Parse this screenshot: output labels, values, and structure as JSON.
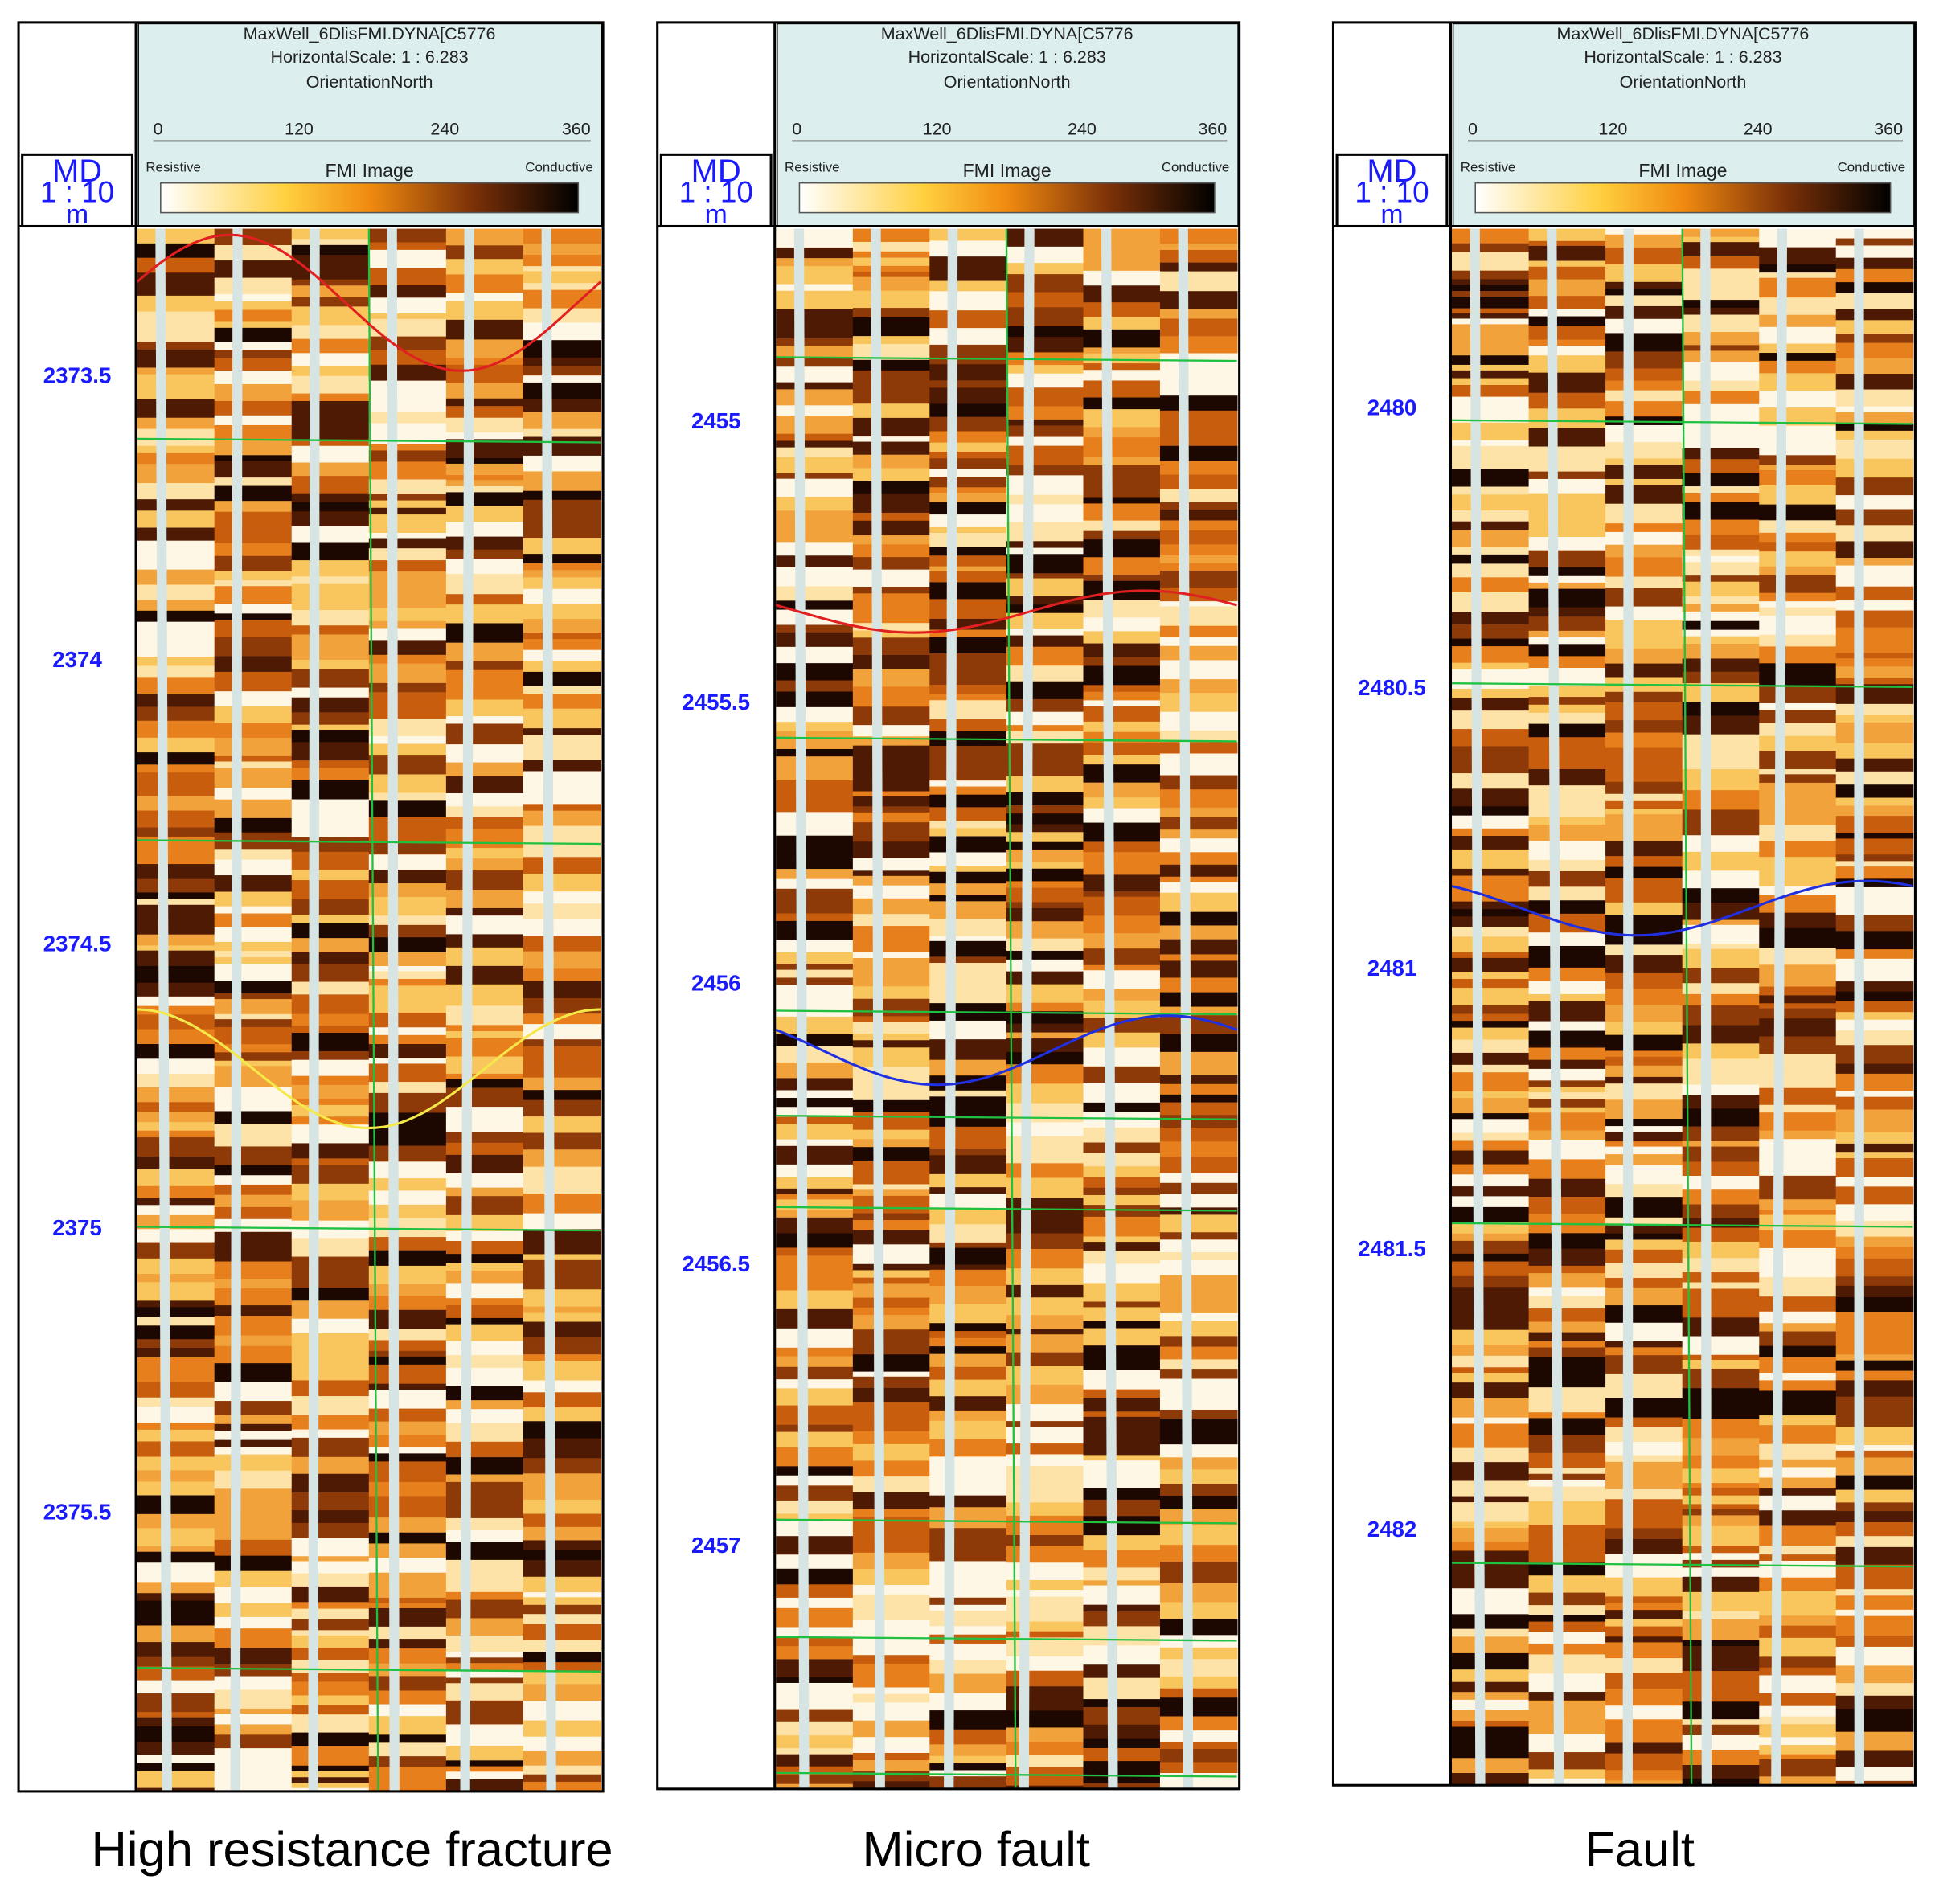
{
  "panels": [
    {
      "header": {
        "lines": [
          "MaxWell_6DlisFMI.DYNA[C5776",
          "HorizontalScale: 1 : 6.283",
          "OrientationNorth"
        ],
        "scale_ticks": [
          0,
          120,
          240,
          360
        ],
        "resistive": "Resistive",
        "image_label": "FMI Image",
        "conductive": "Conductive"
      },
      "depth_track": {
        "unit_lines": [
          "MD",
          "1 : 10",
          "m"
        ],
        "depths": [
          2373.5,
          2374,
          2374.5,
          2375,
          2375.5
        ]
      },
      "caption": "High resistance fracture"
    },
    {
      "header": {
        "lines": [
          "MaxWell_6DlisFMI.DYNA[C5776",
          "HorizontalScale: 1 : 6.283",
          "OrientationNorth"
        ],
        "scale_ticks": [
          0,
          120,
          240,
          360
        ],
        "resistive": "Resistive",
        "image_label": "FMI Image",
        "conductive": "Conductive"
      },
      "depth_track": {
        "unit_lines": [
          "MD",
          "1 : 10",
          "m"
        ],
        "depths": [
          2455,
          2455.5,
          2456,
          2456.5,
          2457
        ]
      },
      "caption": "Micro fault"
    },
    {
      "header": {
        "lines": [
          "MaxWell_6DlisFMI.DYNA[C5776",
          "HorizontalScale: 1 : 6.283",
          "OrientationNorth"
        ],
        "scale_ticks": [
          0,
          120,
          240,
          360
        ],
        "resistive": "Resistive",
        "image_label": "FMI Image",
        "conductive": "Conductive"
      },
      "depth_track": {
        "unit_lines": [
          "MD",
          "1 : 10",
          "m"
        ],
        "depths": [
          2480,
          2480.5,
          2481,
          2481.5,
          2482
        ]
      },
      "caption": "Fault"
    }
  ]
}
